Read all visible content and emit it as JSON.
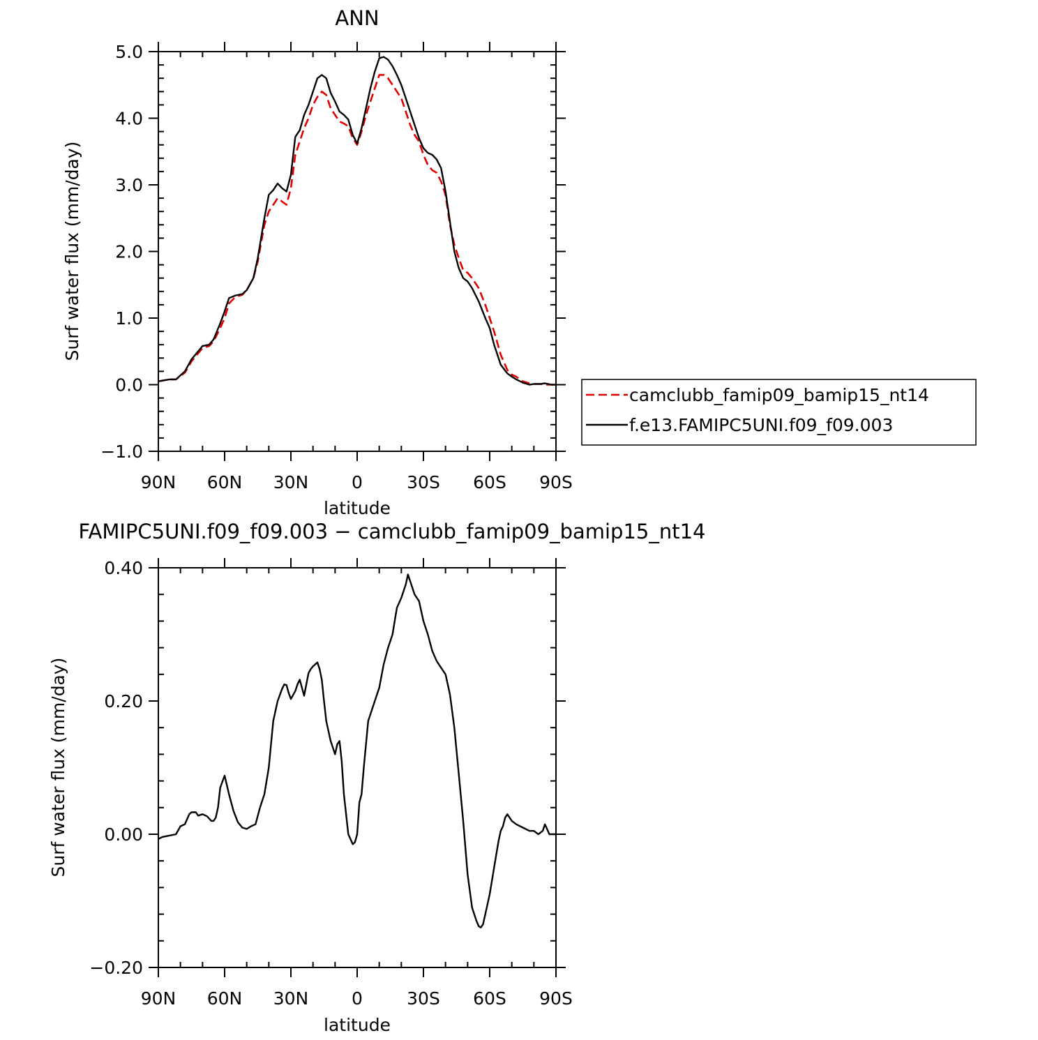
{
  "colors": {
    "model": "#e00000",
    "control": "#000000",
    "axes": "#000000"
  },
  "chart_data": [
    {
      "type": "line",
      "title": "ANN",
      "xlabel": "latitude",
      "ylabel": "Surf water flux (mm/day)",
      "xlim": [
        90,
        -90
      ],
      "ylim": [
        -1.0,
        5.0
      ],
      "xticks": [
        {
          "value": 90,
          "label": "90N"
        },
        {
          "value": 60,
          "label": "60N"
        },
        {
          "value": 30,
          "label": "30N"
        },
        {
          "value": 0,
          "label": "0"
        },
        {
          "value": -30,
          "label": "30S"
        },
        {
          "value": -60,
          "label": "60S"
        },
        {
          "value": -90,
          "label": "90S"
        }
      ],
      "yticks": [
        {
          "value": 5.0,
          "label": "5.0"
        },
        {
          "value": 4.0,
          "label": "4.0"
        },
        {
          "value": 3.0,
          "label": "3.0"
        },
        {
          "value": 2.0,
          "label": "2.0"
        },
        {
          "value": 1.0,
          "label": "1.0"
        },
        {
          "value": 0.0,
          "label": "0.0"
        },
        {
          "value": -1.0,
          "label": "−1.0"
        }
      ],
      "legend_position": "right",
      "series": [
        {
          "name": "camclubb_famip09_bamip15_nt14",
          "style": "dashed",
          "color": "#e00000",
          "x": [
            90,
            85,
            82,
            78,
            75,
            72,
            70,
            67,
            65,
            62,
            60,
            58,
            55,
            52,
            50,
            47,
            45,
            42,
            40,
            38,
            36,
            34,
            32,
            30,
            28,
            26,
            24,
            22,
            20,
            18,
            16,
            14,
            12,
            10,
            8,
            6,
            4,
            2,
            0,
            -2,
            -4,
            -6,
            -8,
            -10,
            -12,
            -14,
            -16,
            -18,
            -20,
            -22,
            -24,
            -26,
            -28,
            -30,
            -32,
            -34,
            -36,
            -38,
            -40,
            -42,
            -44,
            -46,
            -48,
            -50,
            -52,
            -55,
            -58,
            -60,
            -62,
            -65,
            -68,
            -70,
            -72,
            -75,
            -78,
            -80,
            -83,
            -85,
            -88,
            -90
          ],
          "y": [
            0.05,
            0.08,
            0.08,
            0.18,
            0.35,
            0.47,
            0.55,
            0.58,
            0.65,
            0.85,
            1.0,
            1.22,
            1.32,
            1.35,
            1.42,
            1.6,
            1.85,
            2.4,
            2.6,
            2.7,
            2.8,
            2.75,
            2.7,
            2.95,
            3.45,
            3.65,
            3.85,
            4.0,
            4.2,
            4.32,
            4.4,
            4.35,
            4.15,
            4.05,
            3.95,
            3.92,
            3.88,
            3.7,
            3.6,
            3.8,
            4.05,
            4.25,
            4.45,
            4.65,
            4.65,
            4.6,
            4.5,
            4.4,
            4.3,
            4.1,
            3.9,
            3.75,
            3.65,
            3.45,
            3.3,
            3.22,
            3.18,
            3.05,
            2.85,
            2.4,
            2.1,
            1.9,
            1.72,
            1.68,
            1.6,
            1.45,
            1.2,
            1.0,
            0.8,
            0.45,
            0.22,
            0.15,
            0.12,
            0.05,
            0.02,
            0.01,
            0.01,
            0.0,
            0.0,
            0.0
          ]
        },
        {
          "name": "f.e13.FAMIPC5UNI.f09_f09.003",
          "style": "solid",
          "color": "#000000",
          "x": [
            90,
            85,
            82,
            78,
            75,
            72,
            70,
            67,
            65,
            62,
            60,
            58,
            55,
            52,
            50,
            47,
            45,
            42,
            40,
            38,
            36,
            34,
            32,
            30,
            28,
            26,
            24,
            22,
            20,
            18,
            16,
            14,
            12,
            10,
            8,
            6,
            4,
            2,
            0,
            -2,
            -4,
            -6,
            -8,
            -10,
            -12,
            -14,
            -16,
            -18,
            -20,
            -22,
            -24,
            -26,
            -28,
            -30,
            -32,
            -34,
            -36,
            -38,
            -40,
            -42,
            -44,
            -46,
            -48,
            -50,
            -52,
            -55,
            -58,
            -60,
            -62,
            -65,
            -68,
            -70,
            -72,
            -75,
            -78,
            -80,
            -83,
            -85,
            -88,
            -90
          ],
          "y": [
            0.05,
            0.08,
            0.08,
            0.2,
            0.38,
            0.5,
            0.58,
            0.6,
            0.68,
            0.92,
            1.1,
            1.3,
            1.34,
            1.36,
            1.42,
            1.6,
            1.9,
            2.5,
            2.85,
            2.92,
            3.02,
            2.95,
            2.9,
            3.15,
            3.72,
            3.82,
            4.05,
            4.2,
            4.4,
            4.6,
            4.65,
            4.6,
            4.38,
            4.25,
            4.1,
            4.05,
            3.98,
            3.75,
            3.62,
            3.85,
            4.15,
            4.45,
            4.7,
            4.9,
            4.92,
            4.88,
            4.78,
            4.65,
            4.5,
            4.3,
            4.1,
            3.9,
            3.7,
            3.55,
            3.48,
            3.45,
            3.38,
            3.25,
            2.9,
            2.45,
            2.0,
            1.75,
            1.6,
            1.55,
            1.45,
            1.25,
            1.0,
            0.85,
            0.6,
            0.3,
            0.17,
            0.12,
            0.08,
            0.03,
            0.0,
            0.01,
            0.01,
            0.02,
            0.0,
            0.0
          ]
        }
      ]
    },
    {
      "type": "line",
      "title": "FAMIPC5UNI.f09_f09.003 − camclubb_famip09_bamip15_nt14",
      "xlabel": "latitude",
      "ylabel": "Surf water flux (mm/day)",
      "xlim": [
        90,
        -90
      ],
      "ylim": [
        -0.2,
        0.4
      ],
      "xticks": [
        {
          "value": 90,
          "label": "90N"
        },
        {
          "value": 60,
          "label": "60N"
        },
        {
          "value": 30,
          "label": "30N"
        },
        {
          "value": 0,
          "label": "0"
        },
        {
          "value": -30,
          "label": "30S"
        },
        {
          "value": -60,
          "label": "60S"
        },
        {
          "value": -90,
          "label": "90S"
        }
      ],
      "yticks": [
        {
          "value": 0.4,
          "label": "0.40"
        },
        {
          "value": 0.2,
          "label": "0.20"
        },
        {
          "value": 0.0,
          "label": "0.00"
        },
        {
          "value": -0.2,
          "label": "−0.20"
        }
      ],
      "series": [
        {
          "style": "solid",
          "color": "#000000",
          "x": [
            90,
            88,
            85,
            82,
            80,
            78,
            76,
            75,
            73,
            72,
            70,
            68,
            66,
            65,
            64,
            63,
            62,
            60,
            58,
            56,
            54,
            52,
            50,
            48,
            46,
            44,
            42,
            40,
            38,
            36,
            34,
            33,
            32,
            31,
            30,
            28,
            27,
            26,
            24,
            22,
            21,
            20,
            19,
            18,
            17,
            16,
            15,
            14,
            12,
            10,
            9,
            8,
            7,
            6,
            4,
            2,
            1,
            0,
            -1,
            -2,
            -3,
            -5,
            -8,
            -10,
            -12,
            -14,
            -16,
            -17,
            -18,
            -20,
            -22,
            -23,
            -24,
            -26,
            -28,
            -30,
            -32,
            -34,
            -36,
            -38,
            -40,
            -42,
            -44,
            -46,
            -48,
            -50,
            -52,
            -54,
            -55,
            -56,
            -57,
            -58,
            -60,
            -62,
            -64,
            -65,
            -66,
            -67,
            -68,
            -70,
            -72,
            -75,
            -78,
            -80,
            -82,
            -84,
            -85,
            -87,
            -90
          ],
          "y": [
            -0.007,
            -0.004,
            -0.002,
            0.0,
            0.012,
            0.015,
            0.03,
            0.033,
            0.033,
            0.028,
            0.03,
            0.027,
            0.02,
            0.02,
            0.025,
            0.04,
            0.07,
            0.088,
            0.06,
            0.035,
            0.018,
            0.01,
            0.008,
            0.012,
            0.015,
            0.04,
            0.06,
            0.1,
            0.17,
            0.2,
            0.218,
            0.225,
            0.224,
            0.212,
            0.203,
            0.215,
            0.225,
            0.232,
            0.208,
            0.242,
            0.248,
            0.252,
            0.255,
            0.258,
            0.248,
            0.232,
            0.2,
            0.17,
            0.14,
            0.12,
            0.135,
            0.14,
            0.11,
            0.06,
            0.0,
            -0.015,
            -0.012,
            0.0,
            0.048,
            0.06,
            0.1,
            0.17,
            0.2,
            0.22,
            0.255,
            0.28,
            0.3,
            0.32,
            0.34,
            0.355,
            0.375,
            0.39,
            0.38,
            0.36,
            0.35,
            0.32,
            0.3,
            0.275,
            0.26,
            0.25,
            0.24,
            0.21,
            0.16,
            0.09,
            0.02,
            -0.06,
            -0.11,
            -0.13,
            -0.138,
            -0.14,
            -0.135,
            -0.12,
            -0.09,
            -0.05,
            -0.01,
            0.005,
            0.012,
            0.025,
            0.03,
            0.02,
            0.015,
            0.01,
            0.005,
            0.005,
            0.0,
            0.005,
            0.015,
            0.0,
            0.0
          ]
        }
      ]
    }
  ]
}
